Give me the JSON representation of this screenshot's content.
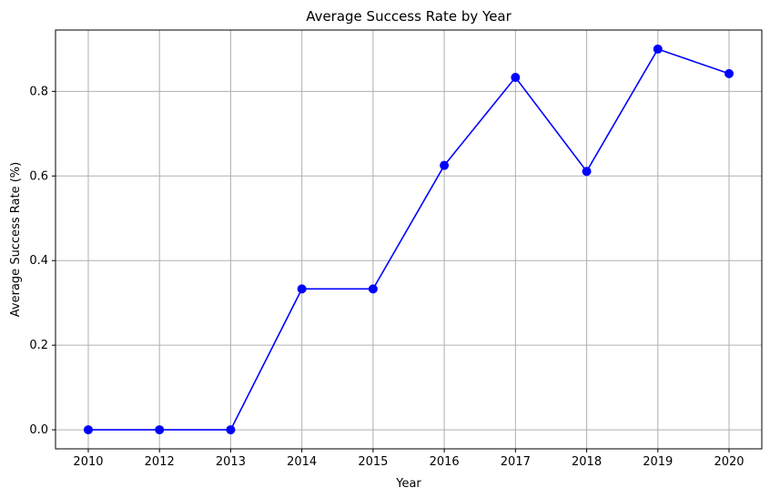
{
  "chart_data": {
    "type": "line",
    "title": "Average Success Rate by Year",
    "xlabel": "Year",
    "ylabel": "Average Success Rate (%)",
    "categories": [
      "2010",
      "2012",
      "2013",
      "2014",
      "2015",
      "2016",
      "2017",
      "2018",
      "2019",
      "2020"
    ],
    "series": [
      {
        "values": [
          0.0,
          0.0,
          0.0,
          0.333,
          0.333,
          0.625,
          0.833,
          0.611,
          0.9,
          0.842
        ],
        "color": "#0000ff",
        "marker": "circle"
      }
    ],
    "yticks": [
      0.0,
      0.2,
      0.4,
      0.6,
      0.8
    ],
    "ytick_labels": [
      "0.0",
      "0.2",
      "0.4",
      "0.6",
      "0.8"
    ],
    "ylim": [
      -0.045,
      0.945
    ],
    "grid": true,
    "legend": "none"
  }
}
